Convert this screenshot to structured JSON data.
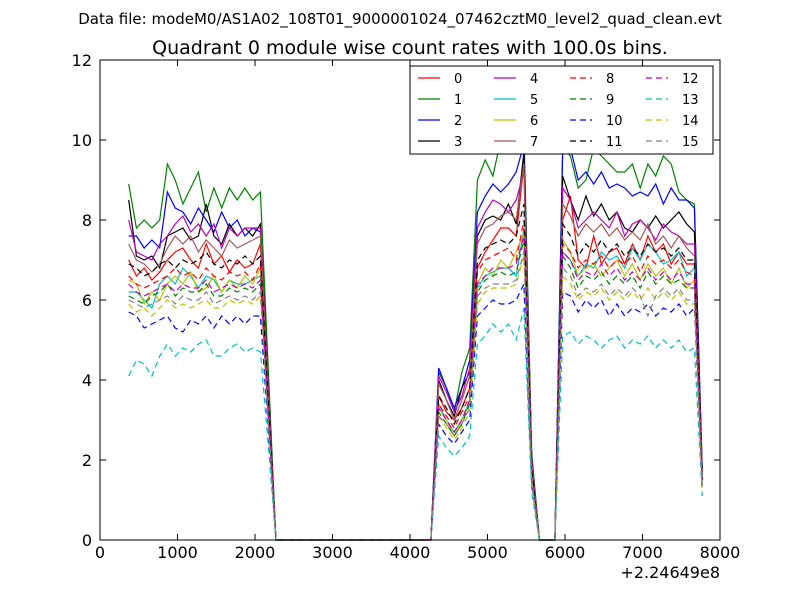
{
  "chart_data": {
    "type": "line",
    "suptitle": "Data file: modeM0/AS1A02_108T01_9000001024_07462cztM0_level2_quad_clean.evt",
    "title": "Quadrant 0 module wise count rates with 100.0s bins.",
    "xlabel": "",
    "ylabel": "",
    "x_offset_label": "+2.24649e8",
    "xlim": [
      0,
      8000
    ],
    "ylim": [
      0,
      12
    ],
    "xticks": [
      0,
      1000,
      2000,
      3000,
      4000,
      5000,
      6000,
      7000,
      8000
    ],
    "xtick_labels": [
      "0",
      "1000",
      "2000",
      "3000",
      "4000",
      "5000",
      "6000",
      "7000",
      "8000"
    ],
    "yticks": [
      0,
      2,
      4,
      6,
      8,
      10,
      12
    ],
    "ytick_labels": [
      "0",
      "2",
      "4",
      "6",
      "8",
      "10",
      "12"
    ],
    "grid": false,
    "legend_position": "top-right",
    "legend_columns": 4,
    "x": [
      370,
      470,
      570,
      670,
      770,
      870,
      970,
      1070,
      1170,
      1270,
      1370,
      1470,
      1570,
      1670,
      1770,
      1870,
      1970,
      2070,
      2170,
      2270,
      4270,
      4370,
      4470,
      4570,
      4670,
      4770,
      4870,
      4970,
      5070,
      5170,
      5270,
      5370,
      5470,
      5570,
      5670,
      5870,
      5970,
      6070,
      6170,
      6270,
      6370,
      6470,
      6570,
      6670,
      6770,
      6870,
      6970,
      7070,
      7170,
      7270,
      7370,
      7470,
      7570,
      7670,
      7770
    ],
    "series": [
      {
        "name": "0",
        "color": "#ff0000",
        "dash": "solid",
        "values": [
          7.0,
          6.6,
          6.8,
          6.5,
          6.7,
          7.0,
          7.2,
          7.3,
          7.0,
          6.8,
          7.4,
          6.9,
          7.1,
          6.7,
          7.0,
          6.8,
          6.9,
          7.4,
          3.4,
          0,
          0,
          3.6,
          3.2,
          3.0,
          3.3,
          3.8,
          6.8,
          7.2,
          7.5,
          7.8,
          7.8,
          7.6,
          9.4,
          1.9,
          0,
          0,
          8.0,
          8.6,
          7.0,
          6.8,
          7.6,
          6.9,
          7.2,
          7.3,
          6.9,
          7.4,
          7.0,
          7.6,
          7.2,
          7.4,
          6.9,
          7.2,
          6.9,
          6.9,
          1.6
        ]
      },
      {
        "name": "1",
        "color": "#008000",
        "dash": "solid",
        "values": [
          8.9,
          7.8,
          8.0,
          7.8,
          8.0,
          9.4,
          9.0,
          8.4,
          8.8,
          9.2,
          8.2,
          8.8,
          8.3,
          8.8,
          8.5,
          8.8,
          8.5,
          8.7,
          4.3,
          0,
          0,
          4.2,
          3.8,
          3.2,
          4.2,
          4.8,
          9.0,
          9.5,
          9.1,
          10.0,
          9.8,
          10.0,
          10.2,
          2.2,
          0,
          0,
          9.8,
          9.6,
          8.8,
          9.0,
          9.8,
          9.6,
          9.4,
          9.2,
          9.2,
          9.4,
          8.8,
          9.4,
          9.1,
          9.6,
          9.4,
          8.7,
          8.5,
          8.4,
          1.8
        ]
      },
      {
        "name": "2",
        "color": "#0000ff",
        "dash": "solid",
        "values": [
          7.6,
          7.6,
          7.3,
          7.5,
          7.3,
          8.7,
          8.3,
          8.2,
          7.9,
          8.3,
          8.0,
          7.7,
          8.2,
          7.8,
          8.0,
          7.6,
          7.8,
          7.7,
          3.8,
          0,
          0,
          4.3,
          3.8,
          3.3,
          3.8,
          4.5,
          8.2,
          8.6,
          8.9,
          8.7,
          8.9,
          9.2,
          9.9,
          2.0,
          0,
          0,
          9.8,
          9.8,
          9.0,
          9.2,
          8.9,
          9.2,
          8.8,
          8.9,
          8.8,
          8.6,
          8.7,
          8.6,
          8.9,
          8.4,
          8.8,
          8.5,
          8.5,
          8.3,
          1.8
        ]
      },
      {
        "name": "3",
        "color": "#000000",
        "dash": "solid",
        "values": [
          8.5,
          7.1,
          7.0,
          7.1,
          6.8,
          7.6,
          7.7,
          7.8,
          7.5,
          7.6,
          8.4,
          7.6,
          7.4,
          7.9,
          7.6,
          7.8,
          7.6,
          7.9,
          3.9,
          0,
          0,
          4.0,
          3.5,
          3.1,
          3.8,
          4.2,
          7.6,
          8.0,
          8.1,
          8.0,
          8.4,
          7.9,
          9.7,
          2.0,
          0,
          0,
          9.1,
          8.5,
          8.0,
          8.6,
          8.1,
          8.4,
          8.0,
          8.2,
          7.8,
          7.7,
          8.0,
          7.8,
          8.1,
          7.8,
          8.0,
          8.2,
          7.9,
          7.7,
          1.7
        ]
      },
      {
        "name": "4",
        "color": "#bf00bf",
        "dash": "solid",
        "values": [
          8.0,
          7.2,
          7.1,
          7.0,
          7.4,
          7.6,
          7.9,
          8.1,
          7.7,
          7.9,
          7.6,
          7.9,
          7.3,
          7.8,
          7.6,
          7.8,
          7.8,
          7.8,
          3.8,
          0,
          0,
          4.1,
          3.7,
          3.2,
          3.6,
          4.3,
          7.8,
          8.2,
          8.5,
          8.4,
          8.2,
          8.5,
          9.2,
          2.0,
          0,
          0,
          8.8,
          8.5,
          7.8,
          8.0,
          8.2,
          8.0,
          7.8,
          8.2,
          7.6,
          7.9,
          8.0,
          7.8,
          7.5,
          7.9,
          7.7,
          7.6,
          7.4,
          7.4,
          1.7
        ]
      },
      {
        "name": "5",
        "color": "#00bfbf",
        "dash": "solid",
        "values": [
          6.2,
          6.2,
          6.0,
          5.8,
          6.4,
          6.6,
          6.4,
          6.8,
          6.6,
          6.3,
          6.6,
          6.5,
          6.2,
          6.5,
          6.4,
          6.4,
          6.5,
          6.6,
          3.2,
          0,
          0,
          3.4,
          3.0,
          2.7,
          3.0,
          3.5,
          6.3,
          6.6,
          6.7,
          6.8,
          6.8,
          6.6,
          7.8,
          1.6,
          0,
          0,
          7.2,
          7.0,
          6.6,
          6.9,
          6.8,
          7.2,
          7.0,
          7.1,
          6.8,
          7.3,
          7.0,
          7.4,
          7.2,
          6.9,
          7.0,
          7.2,
          6.6,
          6.8,
          1.4
        ]
      },
      {
        "name": "6",
        "color": "#bfbf00",
        "dash": "solid",
        "values": [
          6.5,
          6.4,
          5.9,
          6.2,
          6.0,
          6.4,
          6.6,
          6.4,
          6.7,
          6.2,
          6.3,
          6.6,
          6.2,
          6.5,
          6.3,
          6.6,
          6.4,
          6.8,
          3.3,
          0,
          0,
          3.3,
          3.0,
          2.6,
          3.0,
          3.4,
          6.4,
          6.8,
          6.6,
          7.0,
          6.8,
          7.2,
          7.7,
          1.6,
          0,
          0,
          7.5,
          7.2,
          6.6,
          6.8,
          6.9,
          6.6,
          6.8,
          7.0,
          6.6,
          6.9,
          6.5,
          6.9,
          6.6,
          6.8,
          6.4,
          6.8,
          6.3,
          6.5,
          1.4
        ]
      },
      {
        "name": "7",
        "color": "#a05a5a",
        "dash": "solid",
        "values": [
          7.4,
          7.0,
          6.9,
          6.7,
          6.9,
          7.3,
          7.6,
          7.4,
          7.6,
          7.2,
          7.5,
          7.3,
          7.1,
          7.5,
          7.3,
          7.4,
          7.5,
          7.6,
          3.7,
          0,
          0,
          3.9,
          3.5,
          3.0,
          3.5,
          4.1,
          7.4,
          7.8,
          7.9,
          8.1,
          8.2,
          8.0,
          9.4,
          1.9,
          0,
          0,
          8.4,
          8.1,
          7.6,
          7.9,
          7.7,
          7.9,
          7.6,
          7.8,
          7.5,
          7.7,
          7.5,
          7.9,
          7.4,
          7.6,
          7.3,
          7.6,
          7.3,
          7.1,
          1.6
        ]
      },
      {
        "name": "8",
        "color": "#ff0000",
        "dash": "dashed",
        "values": [
          6.6,
          6.4,
          6.3,
          6.4,
          6.5,
          6.6,
          6.8,
          6.6,
          6.7,
          6.5,
          6.8,
          6.6,
          6.5,
          6.7,
          6.6,
          6.7,
          6.5,
          6.9,
          3.3,
          0,
          0,
          3.4,
          3.1,
          2.8,
          3.2,
          3.6,
          6.7,
          7.0,
          7.1,
          7.2,
          7.3,
          7.0,
          8.0,
          1.7,
          0,
          0,
          7.4,
          7.2,
          6.8,
          7.0,
          6.9,
          7.1,
          6.8,
          7.0,
          6.9,
          7.1,
          6.7,
          7.1,
          6.9,
          7.0,
          6.8,
          7.0,
          6.7,
          6.6,
          1.5
        ]
      },
      {
        "name": "9",
        "color": "#008000",
        "dash": "dashed",
        "values": [
          6.1,
          6.0,
          5.9,
          6.1,
          6.2,
          6.4,
          6.1,
          6.3,
          6.2,
          6.2,
          6.4,
          6.1,
          6.1,
          6.3,
          6.2,
          6.3,
          6.2,
          6.4,
          3.1,
          0,
          0,
          3.2,
          2.9,
          2.6,
          2.9,
          3.4,
          6.2,
          6.5,
          6.6,
          6.7,
          6.6,
          6.7,
          7.5,
          1.6,
          0,
          0,
          7.1,
          6.8,
          6.3,
          6.6,
          6.5,
          6.7,
          6.4,
          6.6,
          6.4,
          6.6,
          6.3,
          6.7,
          6.4,
          6.6,
          6.4,
          6.5,
          6.3,
          6.3,
          1.4
        ]
      },
      {
        "name": "10",
        "color": "#0000ff",
        "dash": "dashed",
        "values": [
          5.7,
          5.6,
          5.3,
          5.4,
          5.5,
          5.6,
          5.3,
          5.2,
          5.5,
          5.4,
          5.6,
          5.3,
          5.6,
          5.4,
          5.6,
          5.4,
          5.6,
          5.6,
          2.8,
          0,
          0,
          2.9,
          2.6,
          2.4,
          2.7,
          3.0,
          5.6,
          5.8,
          6.0,
          5.9,
          5.9,
          6.0,
          6.4,
          1.4,
          0,
          0,
          6.2,
          6.1,
          5.7,
          6.0,
          5.8,
          6.0,
          5.6,
          5.9,
          5.6,
          5.8,
          5.7,
          5.9,
          5.6,
          5.8,
          5.7,
          5.9,
          5.6,
          5.8,
          1.3
        ]
      },
      {
        "name": "11",
        "color": "#000000",
        "dash": "dashed",
        "values": [
          6.9,
          6.8,
          6.6,
          6.7,
          6.9,
          7.0,
          6.8,
          7.0,
          6.9,
          7.0,
          7.2,
          6.9,
          6.8,
          7.0,
          6.9,
          7.1,
          6.9,
          7.1,
          3.5,
          0,
          0,
          3.6,
          3.3,
          2.9,
          3.3,
          3.8,
          7.0,
          7.3,
          7.4,
          7.5,
          7.4,
          7.6,
          8.4,
          1.8,
          0,
          0,
          7.9,
          7.6,
          7.1,
          7.4,
          7.2,
          7.5,
          7.2,
          7.4,
          7.1,
          7.3,
          7.1,
          7.4,
          7.2,
          7.3,
          7.1,
          7.3,
          7.0,
          7.0,
          1.5
        ]
      },
      {
        "name": "12",
        "color": "#bf00bf",
        "dash": "dashed",
        "values": [
          6.4,
          6.2,
          6.1,
          6.2,
          6.3,
          6.4,
          6.2,
          6.4,
          6.3,
          6.3,
          6.5,
          6.2,
          6.3,
          6.4,
          6.3,
          6.4,
          6.3,
          6.5,
          3.2,
          0,
          0,
          3.3,
          3.0,
          2.7,
          3.0,
          3.5,
          6.4,
          6.6,
          6.8,
          6.8,
          6.8,
          6.9,
          7.6,
          1.6,
          0,
          0,
          7.2,
          7.0,
          6.5,
          6.7,
          6.6,
          6.9,
          6.6,
          6.8,
          6.5,
          6.7,
          6.5,
          6.8,
          6.5,
          6.7,
          6.5,
          6.7,
          6.4,
          6.4,
          1.4
        ]
      },
      {
        "name": "13",
        "color": "#00bfbf",
        "dash": "dashed",
        "values": [
          4.1,
          4.5,
          4.4,
          4.1,
          4.6,
          4.9,
          4.6,
          4.8,
          4.7,
          4.9,
          5.0,
          4.6,
          4.6,
          4.8,
          4.9,
          4.7,
          4.8,
          4.7,
          2.4,
          0,
          0,
          2.6,
          2.3,
          2.1,
          2.3,
          2.6,
          4.9,
          5.1,
          5.4,
          5.2,
          5.4,
          5.0,
          5.8,
          1.2,
          0,
          0,
          5.1,
          5.2,
          4.9,
          5.1,
          5.0,
          4.8,
          5.0,
          5.1,
          4.8,
          5.0,
          4.9,
          5.1,
          4.8,
          5.0,
          4.8,
          5.0,
          4.7,
          4.8,
          1.1
        ]
      },
      {
        "name": "14",
        "color": "#bfbf00",
        "dash": "dashed",
        "values": [
          5.9,
          5.7,
          5.8,
          5.6,
          5.8,
          6.0,
          5.8,
          5.9,
          5.8,
          5.9,
          6.0,
          5.8,
          5.8,
          6.0,
          5.9,
          6.0,
          5.9,
          6.1,
          3.0,
          0,
          0,
          3.1,
          2.8,
          2.5,
          2.8,
          3.2,
          5.9,
          6.2,
          6.3,
          6.3,
          6.3,
          6.4,
          7.1,
          1.5,
          0,
          0,
          6.6,
          6.4,
          6.0,
          6.2,
          6.1,
          6.3,
          6.0,
          6.2,
          6.0,
          6.2,
          6.0,
          6.3,
          6.0,
          6.2,
          6.0,
          6.2,
          5.9,
          5.9,
          1.3
        ]
      },
      {
        "name": "15",
        "color": "#808080",
        "dash": "dashed",
        "values": [
          6.0,
          5.9,
          5.8,
          5.9,
          6.0,
          6.1,
          5.9,
          6.1,
          6.0,
          6.0,
          6.2,
          5.9,
          6.0,
          6.1,
          6.0,
          6.1,
          6.0,
          6.2,
          3.0,
          0,
          0,
          3.1,
          2.9,
          2.6,
          2.9,
          3.3,
          6.1,
          6.3,
          6.4,
          6.4,
          6.4,
          6.5,
          7.2,
          1.5,
          0,
          0,
          6.8,
          6.6,
          6.1,
          6.3,
          6.2,
          6.4,
          6.1,
          6.3,
          6.1,
          6.3,
          6.1,
          5.6,
          6.1,
          6.3,
          6.1,
          6.3,
          6.0,
          6.0,
          1.3
        ]
      }
    ]
  }
}
